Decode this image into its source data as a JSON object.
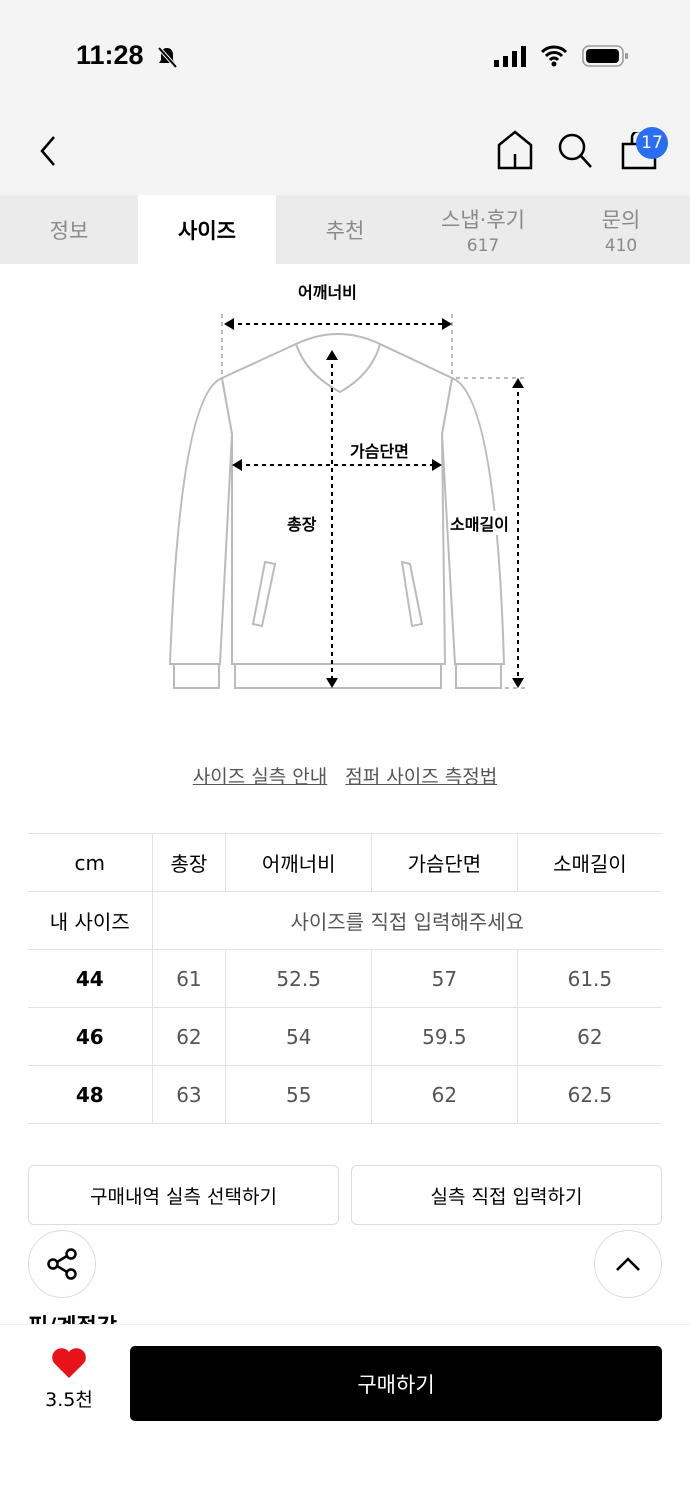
{
  "status": {
    "time": "11:28"
  },
  "header": {
    "cart_count": "17"
  },
  "tabs": [
    {
      "label": "정보"
    },
    {
      "label": "사이즈"
    },
    {
      "label": "추천"
    },
    {
      "label": "스냅·후기",
      "count": "617"
    },
    {
      "label": "문의",
      "count": "410"
    }
  ],
  "diagram": {
    "shoulder": "어깨너비",
    "chest": "가슴단면",
    "length": "총장",
    "sleeve": "소매길이"
  },
  "links": {
    "guide": "사이즈 실측 안내",
    "method": "점퍼 사이즈 측정법"
  },
  "table": {
    "headers": [
      "cm",
      "총장",
      "어깨너비",
      "가슴단면",
      "소매길이"
    ],
    "my_size_label": "내 사이즈",
    "my_size_prompt": "사이즈를 직접 입력해주세요",
    "rows": [
      [
        "44",
        "61",
        "52.5",
        "57",
        "61.5"
      ],
      [
        "46",
        "62",
        "54",
        "59.5",
        "62"
      ],
      [
        "48",
        "63",
        "55",
        "62",
        "62.5"
      ]
    ]
  },
  "buttons": {
    "purchase_history": "구매내역 실측 선택하기",
    "manual_input": "실측 직접 입력하기"
  },
  "section_title": "핏/계절감",
  "bottom": {
    "likes": "3.5천",
    "buy": "구매하기",
    "heart_color": "#e8121b"
  },
  "colors": {
    "badge": "#2a6ef5"
  }
}
